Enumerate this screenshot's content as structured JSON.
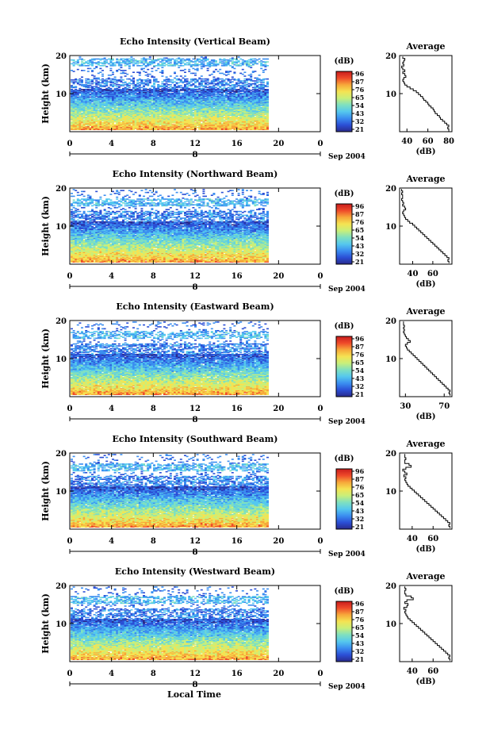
{
  "figure": {
    "xlabel": "Local Time",
    "date_label": "Sep 2004",
    "day_label": "8",
    "colorbar_unit": "(dB)",
    "colorbar_ticks": [
      "96",
      "87",
      "76",
      "65",
      "54",
      "43",
      "32",
      "21"
    ]
  },
  "colors": {
    "scale": [
      "#2a2a8c",
      "#2b4fd6",
      "#3b8ef0",
      "#55c8ee",
      "#7fe0c0",
      "#c9ef7a",
      "#f5e352",
      "#f7a83a",
      "#ef4a2a",
      "#c81c1c"
    ],
    "line": "#000000",
    "background": "#ffffff"
  },
  "chart_data": [
    {
      "type": "heatmap",
      "title": "Echo Intensity (Vertical Beam)",
      "ylabel": "Height (km)",
      "xlim": [
        0,
        24
      ],
      "ylim": [
        0,
        20
      ],
      "xticks": [
        "0",
        "4",
        "8",
        "12",
        "16",
        "20",
        "0"
      ],
      "yticks": [
        "10",
        "20"
      ],
      "data_extent_hours": 19,
      "cloud_top_km": 19,
      "profile": {
        "title": "Average",
        "xlabel": "(dB)",
        "xlim": [
          33,
          83
        ],
        "xticks": [
          "40",
          "60",
          "80"
        ],
        "yticks": [
          "10",
          "20"
        ],
        "heights_km": [
          0.5,
          1,
          1.5,
          2,
          2.5,
          3,
          3.5,
          4,
          4.5,
          5,
          5.5,
          6,
          6.5,
          7,
          7.5,
          8,
          8.5,
          9,
          9.5,
          10,
          10.5,
          11,
          11.5,
          12,
          12.5,
          13,
          13.5,
          14,
          14.5,
          15,
          15.5,
          16,
          16.5,
          17,
          17.5,
          18,
          18.5,
          19,
          19.5
        ],
        "values_db": [
          80,
          79,
          80,
          78,
          76,
          74,
          72,
          71,
          69,
          67,
          66,
          65,
          63,
          61,
          60,
          58,
          56,
          55,
          53,
          51,
          49,
          46,
          43,
          40,
          38,
          37,
          36,
          37,
          39,
          38,
          36,
          38,
          36,
          35,
          37,
          36,
          37,
          38,
          36
        ]
      }
    },
    {
      "type": "heatmap",
      "title": "Echo Intensity (Northward Beam)",
      "ylabel": "Height (km)",
      "xlim": [
        0,
        24
      ],
      "ylim": [
        0,
        20
      ],
      "xticks": [
        "0",
        "4",
        "8",
        "12",
        "16",
        "20",
        "0"
      ],
      "yticks": [
        "10",
        "20"
      ],
      "data_extent_hours": 19,
      "cloud_top_km": 17,
      "profile": {
        "title": "Average",
        "xlabel": "(dB)",
        "xlim": [
          27,
          79
        ],
        "xticks": [
          "40",
          "60"
        ],
        "yticks": [
          "10",
          "20"
        ],
        "heights_km": [
          0.5,
          1,
          1.5,
          2,
          2.5,
          3,
          3.5,
          4,
          4.5,
          5,
          5.5,
          6,
          6.5,
          7,
          7.5,
          8,
          8.5,
          9,
          9.5,
          10,
          10.5,
          11,
          11.5,
          12,
          12.5,
          13,
          13.5,
          14,
          14.5,
          15,
          15.5,
          16,
          16.5,
          17,
          17.5,
          18,
          18.5,
          19,
          19.5
        ],
        "values_db": [
          76,
          75,
          76,
          74,
          72,
          70,
          68,
          66,
          64,
          62,
          60,
          58,
          56,
          54,
          52,
          50,
          48,
          46,
          44,
          42,
          40,
          37,
          35,
          33,
          32,
          31,
          30,
          31,
          33,
          32,
          30,
          31,
          30,
          29,
          30,
          30,
          29,
          30,
          29
        ]
      }
    },
    {
      "type": "heatmap",
      "title": "Echo Intensity (Eastward Beam)",
      "ylabel": "Height (km)",
      "xlim": [
        0,
        24
      ],
      "ylim": [
        0,
        20
      ],
      "xticks": [
        "0",
        "4",
        "8",
        "12",
        "16",
        "20",
        "0"
      ],
      "yticks": [
        "10",
        "20"
      ],
      "data_extent_hours": 19,
      "cloud_top_km": 17,
      "profile": {
        "title": "Average",
        "xlabel": "(dB)",
        "xlim": [
          24,
          78
        ],
        "xticks": [
          "30",
          "70"
        ],
        "yticks": [
          "10",
          "20"
        ],
        "heights_km": [
          0.5,
          1,
          1.5,
          2,
          2.5,
          3,
          3.5,
          4,
          4.5,
          5,
          5.5,
          6,
          6.5,
          7,
          7.5,
          8,
          8.5,
          9,
          9.5,
          10,
          10.5,
          11,
          11.5,
          12,
          12.5,
          13,
          13.5,
          14,
          14.5,
          15,
          15.5,
          16,
          16.5,
          17,
          17.5,
          18,
          18.5,
          19,
          19.5
        ],
        "values_db": [
          76,
          75,
          76,
          74,
          72,
          70,
          68,
          66,
          64,
          62,
          60,
          58,
          56,
          54,
          52,
          50,
          48,
          46,
          44,
          42,
          40,
          38,
          36,
          34,
          32,
          31,
          30,
          32,
          35,
          33,
          31,
          30,
          29,
          28,
          29,
          28,
          29,
          28,
          28
        ]
      }
    },
    {
      "type": "heatmap",
      "title": "Echo Intensity (Southward Beam)",
      "ylabel": "Height (km)",
      "xlim": [
        0,
        24
      ],
      "ylim": [
        0,
        20
      ],
      "xticks": [
        "0",
        "4",
        "8",
        "12",
        "16",
        "20",
        "0"
      ],
      "yticks": [
        "10",
        "20"
      ],
      "data_extent_hours": 19,
      "cloud_top_km": 17,
      "profile": {
        "title": "Average",
        "xlabel": "(dB)",
        "xlim": [
          28,
          78
        ],
        "xticks": [
          "40",
          "60"
        ],
        "yticks": [
          "10",
          "20"
        ],
        "heights_km": [
          0.5,
          1,
          1.5,
          2,
          2.5,
          3,
          3.5,
          4,
          4.5,
          5,
          5.5,
          6,
          6.5,
          7,
          7.5,
          8,
          8.5,
          9,
          9.5,
          10,
          10.5,
          11,
          11.5,
          12,
          12.5,
          13,
          13.5,
          14,
          14.5,
          15,
          15.5,
          16,
          16.5,
          17,
          17.5,
          18,
          18.5,
          19,
          19.5
        ],
        "values_db": [
          76,
          75,
          76,
          74,
          72,
          70,
          68,
          66,
          64,
          62,
          60,
          58,
          56,
          54,
          52,
          50,
          48,
          46,
          44,
          42,
          40,
          38,
          36,
          35,
          34,
          33,
          34,
          32,
          35,
          33,
          31,
          34,
          39,
          37,
          33,
          33,
          34,
          33,
          33
        ]
      }
    },
    {
      "type": "heatmap",
      "title": "Echo Intensity (Westward Beam)",
      "ylabel": "Height (km)",
      "xlim": [
        0,
        24
      ],
      "ylim": [
        0,
        20
      ],
      "xticks": [
        "0",
        "4",
        "8",
        "12",
        "16",
        "20",
        "0"
      ],
      "yticks": [
        "10",
        "20"
      ],
      "data_extent_hours": 19,
      "cloud_top_km": 17,
      "profile": {
        "title": "Average",
        "xlabel": "(dB)",
        "xlim": [
          28,
          78
        ],
        "xticks": [
          "40",
          "60"
        ],
        "yticks": [
          "10",
          "20"
        ],
        "heights_km": [
          0.5,
          1,
          1.5,
          2,
          2.5,
          3,
          3.5,
          4,
          4.5,
          5,
          5.5,
          6,
          6.5,
          7,
          7.5,
          8,
          8.5,
          9,
          9.5,
          10,
          10.5,
          11,
          11.5,
          12,
          12.5,
          13,
          13.5,
          14,
          14.5,
          15,
          15.5,
          16,
          16.5,
          17,
          17.5,
          18,
          18.5,
          19,
          19.5
        ],
        "values_db": [
          76,
          75,
          76,
          74,
          72,
          70,
          68,
          66,
          64,
          62,
          60,
          58,
          56,
          54,
          52,
          50,
          48,
          46,
          44,
          42,
          40,
          38,
          36,
          35,
          34,
          33,
          34,
          32,
          35,
          36,
          33,
          35,
          41,
          39,
          34,
          33,
          33,
          34,
          33
        ]
      }
    }
  ]
}
